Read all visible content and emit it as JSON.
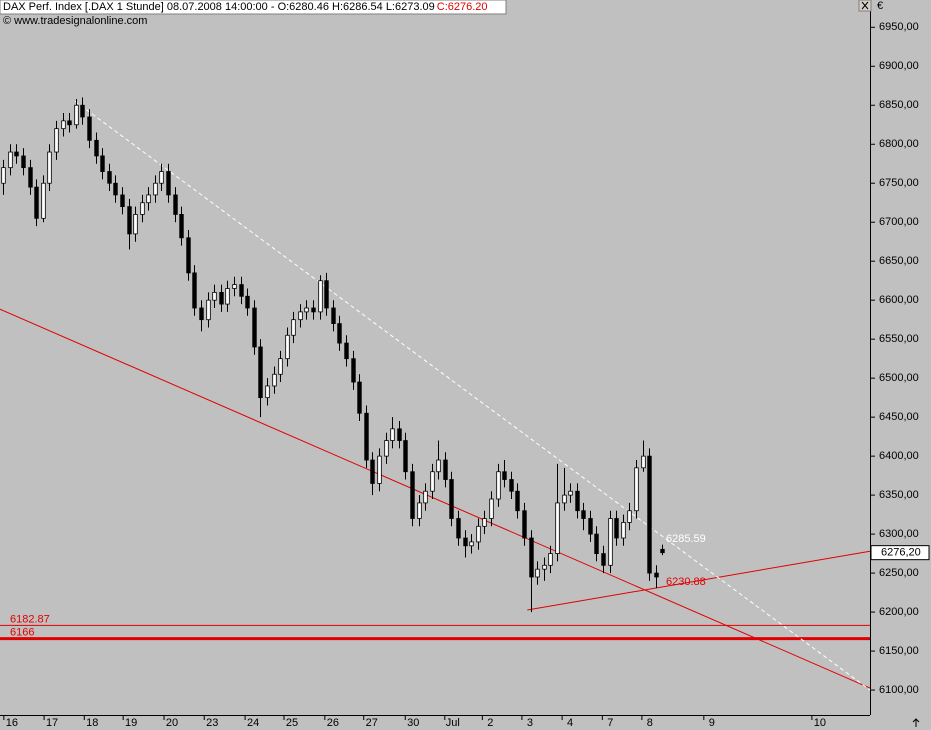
{
  "header": {
    "title": "DAX Perf. Index [.DAX  1 Stunde] 08.07.2008 14:00:00 - O:6280.46 H:6286.54 L:6273.09",
    "close_text": "C:6276.20",
    "copyright": "© www.tradesignalonline.com",
    "currency": "€"
  },
  "chart_data": {
    "type": "candlestick",
    "open": [
      6750,
      6770,
      6790,
      6785,
      6770,
      6745,
      6705,
      6750,
      6790,
      6820,
      6830,
      6825,
      6850,
      6835,
      6805,
      6785,
      6765,
      6750,
      6735,
      6720,
      6685,
      6710,
      6725,
      6735,
      6750,
      6765,
      6735,
      6710,
      6680,
      6635,
      6590,
      6575,
      6600,
      6610,
      6595,
      6615,
      6620,
      6605,
      6590,
      6540,
      6475,
      6490,
      6505,
      6525,
      6555,
      6575,
      6585,
      6590,
      6585,
      6625,
      6590,
      6570,
      6545,
      6525,
      6495,
      6455,
      6395,
      6365,
      6400,
      6420,
      6435,
      6420,
      6380,
      6320,
      6340,
      6355,
      6380,
      6395,
      6370,
      6320,
      6295,
      6285,
      6290,
      6310,
      6320,
      6345,
      6380,
      6370,
      6355,
      6330,
      6295,
      6245,
      6255,
      6260,
      6275,
      6340,
      6350,
      6355,
      6330,
      6320,
      6300,
      6275,
      6260,
      6320,
      6295,
      6315,
      6330,
      6385,
      6400,
      6250,
      6280.46
    ],
    "high": [
      6780,
      6800,
      6800,
      6795,
      6780,
      6755,
      6760,
      6800,
      6830,
      6840,
      6840,
      6858,
      6860,
      6845,
      6815,
      6795,
      6775,
      6760,
      6745,
      6730,
      6720,
      6735,
      6745,
      6760,
      6775,
      6775,
      6745,
      6720,
      6690,
      6645,
      6600,
      6610,
      6620,
      6620,
      6625,
      6630,
      6630,
      6615,
      6600,
      6550,
      6500,
      6515,
      6535,
      6565,
      6585,
      6595,
      6600,
      6600,
      6632,
      6635,
      6600,
      6580,
      6555,
      6535,
      6505,
      6465,
      6405,
      6410,
      6430,
      6450,
      6445,
      6430,
      6390,
      6350,
      6365,
      6390,
      6420,
      6405,
      6380,
      6330,
      6305,
      6300,
      6320,
      6330,
      6355,
      6390,
      6395,
      6380,
      6365,
      6340,
      6305,
      6265,
      6270,
      6285,
      6390,
      6385,
      6365,
      6365,
      6340,
      6330,
      6310,
      6285,
      6330,
      6330,
      6325,
      6340,
      6395,
      6420,
      6410,
      6260,
      6286.54
    ],
    "low": [
      6735,
      6760,
      6775,
      6760,
      6735,
      6695,
      6700,
      6740,
      6780,
      6810,
      6815,
      6820,
      6825,
      6795,
      6775,
      6755,
      6740,
      6725,
      6710,
      6665,
      6675,
      6700,
      6715,
      6725,
      6740,
      6725,
      6700,
      6670,
      6625,
      6580,
      6560,
      6565,
      6590,
      6585,
      6585,
      6605,
      6595,
      6580,
      6530,
      6450,
      6465,
      6480,
      6495,
      6515,
      6545,
      6565,
      6575,
      6575,
      6575,
      6580,
      6560,
      6535,
      6515,
      6485,
      6445,
      6385,
      6350,
      6355,
      6390,
      6410,
      6410,
      6370,
      6310,
      6310,
      6330,
      6345,
      6370,
      6360,
      6310,
      6285,
      6270,
      6275,
      6280,
      6300,
      6310,
      6335,
      6360,
      6345,
      6320,
      6285,
      6200,
      6235,
      6240,
      6250,
      6265,
      6330,
      6340,
      6320,
      6305,
      6290,
      6265,
      6250,
      6250,
      6285,
      6285,
      6305,
      6320,
      6380,
      6240,
      6230.88,
      6273.09
    ],
    "close": [
      6770,
      6790,
      6785,
      6770,
      6745,
      6705,
      6750,
      6790,
      6820,
      6830,
      6825,
      6850,
      6835,
      6805,
      6785,
      6765,
      6750,
      6735,
      6720,
      6685,
      6710,
      6725,
      6735,
      6750,
      6765,
      6735,
      6710,
      6680,
      6635,
      6590,
      6575,
      6600,
      6610,
      6595,
      6615,
      6620,
      6605,
      6590,
      6540,
      6475,
      6490,
      6505,
      6525,
      6555,
      6575,
      6585,
      6590,
      6585,
      6625,
      6590,
      6570,
      6545,
      6525,
      6495,
      6455,
      6395,
      6365,
      6400,
      6420,
      6435,
      6420,
      6380,
      6320,
      6340,
      6355,
      6380,
      6395,
      6370,
      6320,
      6295,
      6285,
      6290,
      6310,
      6320,
      6345,
      6380,
      6370,
      6355,
      6330,
      6295,
      6245,
      6255,
      6260,
      6275,
      6340,
      6350,
      6355,
      6330,
      6320,
      6300,
      6275,
      6260,
      6320,
      6295,
      6315,
      6330,
      6385,
      6400,
      6250,
      6245,
      6276.2
    ],
    "up_color": "#ffffff",
    "down_color": "#000000",
    "xlim": [
      -0.5,
      131.5
    ],
    "xticks": [
      {
        "value": 1.3,
        "label": "16"
      },
      {
        "value": 7.4,
        "label": "17"
      },
      {
        "value": 13.5,
        "label": "18"
      },
      {
        "value": 19.4,
        "label": "19"
      },
      {
        "value": 25.6,
        "label": "20"
      },
      {
        "value": 31.7,
        "label": "23"
      },
      {
        "value": 37.9,
        "label": "24"
      },
      {
        "value": 43.8,
        "label": "25"
      },
      {
        "value": 50.0,
        "label": "26"
      },
      {
        "value": 55.9,
        "label": "27"
      },
      {
        "value": 62.2,
        "label": "30"
      },
      {
        "value": 68.2,
        "label": "Jul"
      },
      {
        "value": 73.9,
        "label": "2"
      },
      {
        "value": 79.9,
        "label": "3"
      },
      {
        "value": 86.0,
        "label": "4"
      },
      {
        "value": 92.1,
        "label": "7"
      },
      {
        "value": 98.1,
        "label": "8"
      },
      {
        "value": 107.5,
        "label": "9"
      },
      {
        "value": 123.9,
        "label": "10"
      }
    ],
    "ylim": [
      6068,
      6985
    ],
    "yticks": [
      {
        "value": 6100,
        "label": "6100,00"
      },
      {
        "value": 6150,
        "label": "6150,00"
      },
      {
        "value": 6200,
        "label": "6200,00"
      },
      {
        "value": 6250,
        "label": "6250,00"
      },
      {
        "value": 6300,
        "label": "6300,00"
      },
      {
        "value": 6350,
        "label": "6350,00"
      },
      {
        "value": 6400,
        "label": "6400,00"
      },
      {
        "value": 6450,
        "label": "6450,00"
      },
      {
        "value": 6500,
        "label": "6500,00"
      },
      {
        "value": 6550,
        "label": "6550,00"
      },
      {
        "value": 6600,
        "label": "6600,00"
      },
      {
        "value": 6650,
        "label": "6650,00"
      },
      {
        "value": 6700,
        "label": "6700,00"
      },
      {
        "value": 6750,
        "label": "6750,00"
      },
      {
        "value": 6800,
        "label": "6800,00"
      },
      {
        "value": 6850,
        "label": "6850,00"
      },
      {
        "value": 6900,
        "label": "6900,00"
      },
      {
        "value": 6950,
        "label": "6950,00"
      }
    ],
    "last_price": {
      "value": 6276.2,
      "label": "6276,20"
    },
    "levels": [
      6182.87,
      6166
    ],
    "level_color": "#e00000",
    "price_labels": [
      {
        "value": 6285.59,
        "color": "#ffffff"
      },
      {
        "value": 6230.88,
        "color": "#e00000"
      }
    ],
    "trendlines": [
      {
        "color": "#e00000",
        "dash": false,
        "x": [
          -0.5,
          131.5
        ],
        "y": [
          6588.5,
          6102.6
        ]
      },
      {
        "color": "#e00000",
        "dash": false,
        "x": [
          79.5,
          131.5
        ],
        "y": [
          6202.6,
          6278
        ]
      },
      {
        "color": "#ffffff",
        "dash": true,
        "x": [
          10.9,
          131.5
        ],
        "y": [
          6855,
          6100
        ]
      }
    ]
  }
}
